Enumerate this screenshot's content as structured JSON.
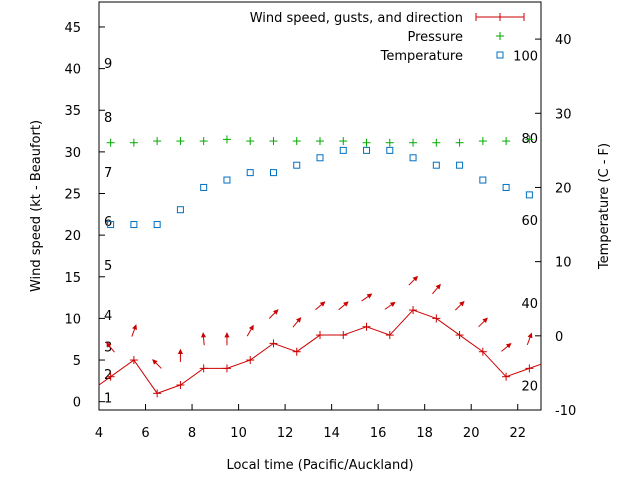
{
  "chart_data": {
    "type": "line",
    "xlabel": "Local time (Pacific/Auckland)",
    "ylabel_left": "Wind speed (kt - Beaufort)",
    "ylabel_right": "Temperature (C - F)",
    "xlim": [
      4,
      23
    ],
    "ylim_left": [
      -1,
      48
    ],
    "ylim_right": [
      -10,
      45
    ],
    "x_ticks": [
      4,
      6,
      8,
      10,
      12,
      14,
      16,
      18,
      20,
      22
    ],
    "y_ticks_left": [
      0,
      5,
      10,
      15,
      20,
      25,
      30,
      35,
      40,
      45
    ],
    "y_ticks_right": [
      -10,
      0,
      10,
      20,
      30,
      40
    ],
    "beaufort_labels": [
      {
        "label": "1",
        "y": 0.5
      },
      {
        "label": "2",
        "y": 3.3
      },
      {
        "label": "3",
        "y": 6.6
      },
      {
        "label": "4",
        "y": 10.4
      },
      {
        "label": "5",
        "y": 16.4
      },
      {
        "label": "6",
        "y": 21.7
      },
      {
        "label": "7",
        "y": 27.6
      },
      {
        "label": "8",
        "y": 34.2
      },
      {
        "label": "9",
        "y": 40.7
      }
    ],
    "fahrenheit_labels": [
      {
        "label": "20",
        "c": -6.7
      },
      {
        "label": "40",
        "c": 4.4
      },
      {
        "label": "60",
        "c": 15.6
      },
      {
        "label": "80",
        "c": 26.7
      },
      {
        "label": "100",
        "c": 37.8
      }
    ],
    "legend_position": "top-right",
    "series": [
      {
        "name": "Wind speed, gusts, and direction",
        "color": "#cc0000",
        "x": [
          4.5,
          5.5,
          6.5,
          7.5,
          8.5,
          9.5,
          10.5,
          11.5,
          12.5,
          13.5,
          14.5,
          15.5,
          16.5,
          17.5,
          18.5,
          19.5,
          20.5,
          21.5,
          22.5
        ],
        "y": [
          3,
          5,
          1,
          2,
          4,
          4,
          5,
          7,
          6,
          8,
          8,
          9,
          8,
          11,
          10,
          8,
          6,
          3,
          4
        ],
        "line_extends": [
          4,
          23
        ],
        "direction_deg": [
          140,
          200,
          135,
          180,
          175,
          180,
          210,
          225,
          220,
          230,
          230,
          235,
          235,
          225,
          220,
          225,
          225,
          230,
          200
        ]
      },
      {
        "name": "Pressure",
        "color": "#00aa00",
        "x": [
          4.5,
          5.5,
          6.5,
          7.5,
          8.5,
          9.5,
          10.5,
          11.5,
          12.5,
          13.5,
          14.5,
          15.5,
          16.5,
          17.5,
          18.5,
          19.5,
          20.5,
          21.5,
          22.5
        ],
        "y": [
          31.1,
          31.1,
          31.3,
          31.3,
          31.3,
          31.5,
          31.3,
          31.3,
          31.3,
          31.3,
          31.3,
          31.1,
          31.1,
          31.1,
          31.1,
          31.1,
          31.3,
          31.3,
          31.5
        ]
      },
      {
        "name": "Temperature",
        "color": "#0070c0",
        "axis": "right",
        "x": [
          4.5,
          5.5,
          6.5,
          7.5,
          8.5,
          9.5,
          10.5,
          11.5,
          12.5,
          13.5,
          14.5,
          15.5,
          16.5,
          17.5,
          18.5,
          19.5,
          20.5,
          21.5,
          22.5
        ],
        "y": [
          15,
          15,
          15,
          17,
          20,
          21,
          22,
          22,
          23,
          24,
          25,
          25,
          25,
          24,
          23,
          23,
          21,
          20,
          19
        ]
      }
    ]
  }
}
